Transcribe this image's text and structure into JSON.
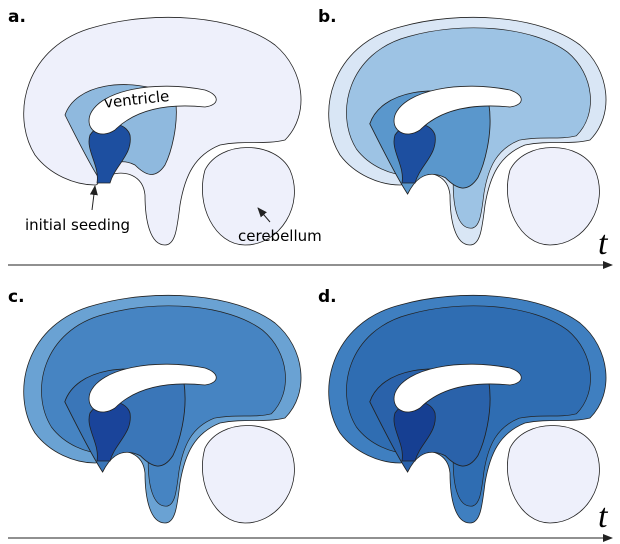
{
  "panels": [
    {
      "label": "a."
    },
    {
      "label": "b."
    },
    {
      "label": "c."
    },
    {
      "label": "d."
    }
  ],
  "annotations": {
    "ventricle": "ventricle",
    "seeding": "initial seeding",
    "cerebellum": "cerebellum"
  },
  "time_axes": [
    {
      "label": "t"
    },
    {
      "label": "t"
    }
  ]
}
